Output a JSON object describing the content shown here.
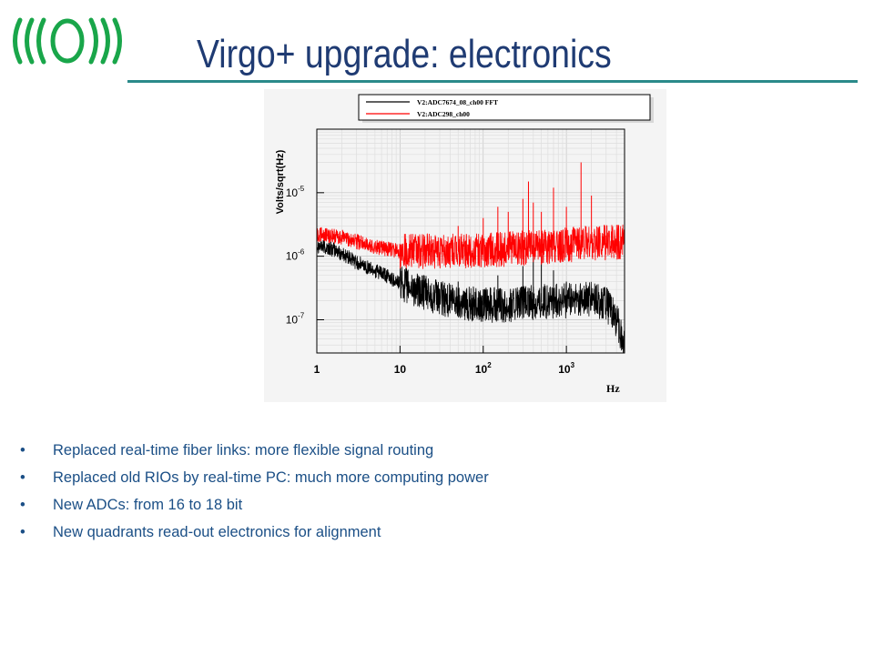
{
  "slide": {
    "title": "Virgo+ upgrade: electronics",
    "logo_icon": "virgo-waves-logo",
    "accent_color": "#2a8a8a",
    "title_color": "#1f3b73",
    "text_color": "#1b4f86"
  },
  "bullets": [
    {
      "marker": "•",
      "text": "Replaced real-time fiber links: more flexible signal routing"
    },
    {
      "marker": "•",
      "text": "Replaced old RIOs by real-time PC: much more computing power"
    },
    {
      "marker": "•",
      "text": "New ADCs: from 16 to 18 bit"
    },
    {
      "marker": "•",
      "text": "New quadrants read-out electronics for alignment"
    }
  ],
  "chart_data": {
    "type": "line",
    "title": "",
    "xlabel": "Hz",
    "ylabel": "Volts/sqrt(Hz)",
    "xscale": "log",
    "yscale": "log",
    "xlim": [
      1,
      5000
    ],
    "ylim": [
      3e-08,
      0.0001
    ],
    "grid": true,
    "legend": "top",
    "x_ticks": [
      {
        "value": 1,
        "label": "1",
        "sup": ""
      },
      {
        "value": 10,
        "label": "10",
        "sup": ""
      },
      {
        "value": 100,
        "label": "10",
        "sup": "2"
      },
      {
        "value": 1000,
        "label": "10",
        "sup": "3"
      }
    ],
    "y_ticks": [
      {
        "value": 1e-05,
        "label": "10",
        "sup": "-5"
      },
      {
        "value": 1e-06,
        "label": "10",
        "sup": "-6"
      },
      {
        "value": 1e-07,
        "label": "10",
        "sup": "-7"
      }
    ],
    "series": [
      {
        "name": "V2:ADC7674_08_ch00 FFT",
        "color": "#000000",
        "x": [
          1,
          1.5,
          2,
          3,
          5,
          7,
          10,
          15,
          20,
          30,
          50,
          70,
          100,
          200,
          300,
          500,
          1000,
          2000,
          3000,
          4000,
          5000
        ],
        "y": [
          1.5e-06,
          1.3e-06,
          1.1e-06,
          8e-07,
          6e-07,
          4.8e-07,
          3.8e-07,
          3e-07,
          2.6e-07,
          2.2e-07,
          1.9e-07,
          1.8e-07,
          1.7e-07,
          1.7e-07,
          1.8e-07,
          1.9e-07,
          2e-07,
          2.1e-07,
          1.8e-07,
          1e-07,
          4e-08
        ],
        "peaks": [
          {
            "x": 50,
            "y": 4e-07
          },
          {
            "x": 100,
            "y": 3e-07
          },
          {
            "x": 150,
            "y": 5e-07
          },
          {
            "x": 300,
            "y": 7e-07
          },
          {
            "x": 400,
            "y": 1.5e-06
          },
          {
            "x": 500,
            "y": 1e-06
          },
          {
            "x": 700,
            "y": 6e-07
          },
          {
            "x": 1000,
            "y": 4e-07
          }
        ]
      },
      {
        "name": "V2:ADC298_ch00",
        "color": "#ff0000",
        "x": [
          1,
          1.5,
          2,
          3,
          5,
          7,
          10,
          20,
          50,
          100,
          200,
          500,
          1000,
          2000,
          5000
        ],
        "y": [
          2.2e-06,
          2.1e-06,
          2e-06,
          1.7e-06,
          1.4e-06,
          1.3e-06,
          1.2e-06,
          1.2e-06,
          1.2e-06,
          1.2e-06,
          1.3e-06,
          1.4e-06,
          1.5e-06,
          1.6e-06,
          1.7e-06
        ],
        "peaks": [
          {
            "x": 50,
            "y": 3e-06
          },
          {
            "x": 100,
            "y": 4e-06
          },
          {
            "x": 150,
            "y": 6e-06
          },
          {
            "x": 200,
            "y": 5e-06
          },
          {
            "x": 300,
            "y": 8e-06
          },
          {
            "x": 350,
            "y": 1.5e-05
          },
          {
            "x": 400,
            "y": 7e-06
          },
          {
            "x": 500,
            "y": 5e-06
          },
          {
            "x": 700,
            "y": 1.2e-05
          },
          {
            "x": 1000,
            "y": 6e-06
          },
          {
            "x": 1500,
            "y": 3e-05
          },
          {
            "x": 2000,
            "y": 9e-06
          }
        ]
      }
    ]
  }
}
